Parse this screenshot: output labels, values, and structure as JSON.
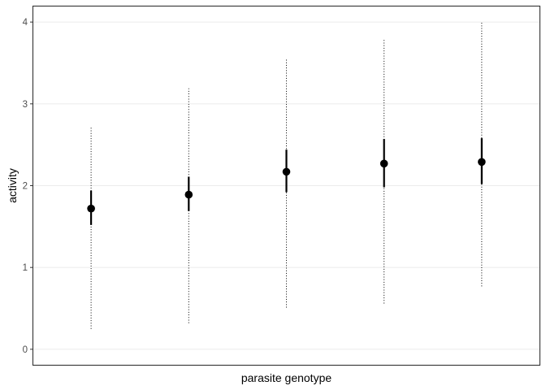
{
  "chart_data": {
    "type": "scatter",
    "xlabel": "parasite genotype",
    "ylabel": "activity",
    "ylim": [
      -0.2,
      4.2
    ],
    "yticks": [
      0,
      1,
      2,
      3,
      4
    ],
    "x_tick_labels_shown": false,
    "grid": {
      "horizontal_major": true,
      "vertical": false
    },
    "legend": "none",
    "points": [
      {
        "index": 1,
        "mean": 1.72,
        "ci_low": 1.52,
        "ci_high": 1.94,
        "range_low": 0.25,
        "range_high": 2.71
      },
      {
        "index": 2,
        "mean": 1.89,
        "ci_low": 1.69,
        "ci_high": 2.11,
        "range_low": 0.32,
        "range_high": 3.19
      },
      {
        "index": 3,
        "mean": 2.17,
        "ci_low": 1.92,
        "ci_high": 2.44,
        "range_low": 0.51,
        "range_high": 3.54
      },
      {
        "index": 4,
        "mean": 2.27,
        "ci_low": 1.98,
        "ci_high": 2.57,
        "range_low": 0.56,
        "range_high": 3.79
      },
      {
        "index": 5,
        "mean": 2.29,
        "ci_low": 2.02,
        "ci_high": 2.58,
        "range_low": 0.77,
        "range_high": 4.0
      }
    ],
    "colors": {
      "points": "#000000",
      "grid": "#ebebeb",
      "panel_border": "#333333",
      "tick_text": "#4d4d4d"
    }
  }
}
